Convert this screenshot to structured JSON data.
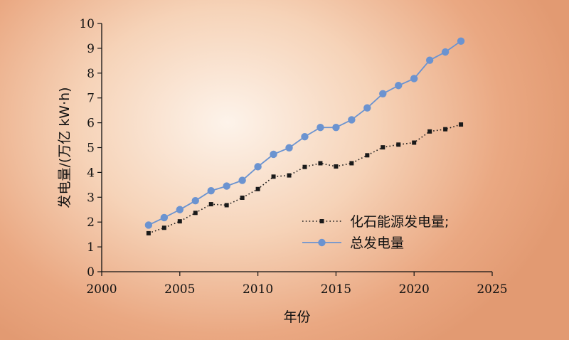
{
  "chart_data": {
    "type": "line",
    "xlabel": "年份",
    "ylabel": "发电量/(万亿 kW·h)",
    "xlim": [
      2000,
      2025
    ],
    "ylim": [
      0,
      10
    ],
    "xticks": [
      2000,
      2005,
      2010,
      2015,
      2020,
      2025
    ],
    "yticks": [
      0,
      1,
      2,
      3,
      4,
      5,
      6,
      7,
      8,
      9,
      10
    ],
    "grid": false,
    "legend_position": "center-right",
    "x": [
      2003,
      2004,
      2005,
      2006,
      2007,
      2008,
      2009,
      2010,
      2011,
      2012,
      2013,
      2014,
      2015,
      2016,
      2017,
      2018,
      2019,
      2020,
      2021,
      2022,
      2023
    ],
    "series": [
      {
        "name": "化石能源发电量;",
        "color": "#1a1a1a",
        "line_style": "dotted",
        "marker": "square",
        "values": [
          1.55,
          1.77,
          2.03,
          2.37,
          2.72,
          2.68,
          2.98,
          3.33,
          3.83,
          3.88,
          4.22,
          4.37,
          4.24,
          4.37,
          4.69,
          5.01,
          5.12,
          5.2,
          5.65,
          5.74,
          5.93
        ]
      },
      {
        "name": "总发电量",
        "color": "#6b93d0",
        "line_style": "solid",
        "marker": "circle",
        "values": [
          1.88,
          2.18,
          2.5,
          2.86,
          3.26,
          3.45,
          3.68,
          4.23,
          4.73,
          4.99,
          5.44,
          5.81,
          5.81,
          6.12,
          6.6,
          7.17,
          7.5,
          7.78,
          8.52,
          8.85,
          9.29
        ]
      }
    ]
  }
}
